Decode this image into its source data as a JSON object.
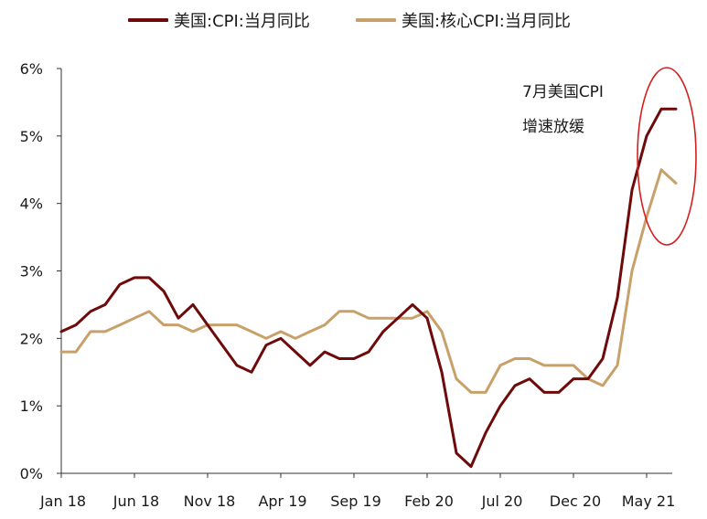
{
  "colors": {
    "cpi": "#6e0a0a",
    "core_cpi": "#c8a06a",
    "highlight": "#d42020",
    "axis": "#333333"
  },
  "legend": [
    {
      "label": "美国:CPI:当月同比",
      "color": "#6e0a0a"
    },
    {
      "label": "美国:核心CPI:当月同比",
      "color": "#c8a06a"
    }
  ],
  "annotation": {
    "line1": "7月美国CPI",
    "line2": "增速放缓"
  },
  "chart_data": {
    "type": "line",
    "title": "",
    "xlabel": "",
    "ylabel": "",
    "ylim": [
      0,
      6
    ],
    "y_ticks": [
      "0%",
      "1%",
      "2%",
      "3%",
      "4%",
      "5%",
      "6%"
    ],
    "x_ticks": [
      "Jan 18",
      "Jun 18",
      "Nov 18",
      "Apr 19",
      "Sep 19",
      "Feb 20",
      "Jul 20",
      "Dec 20",
      "May 21"
    ],
    "x": [
      "2018-01",
      "2018-02",
      "2018-03",
      "2018-04",
      "2018-05",
      "2018-06",
      "2018-07",
      "2018-08",
      "2018-09",
      "2018-10",
      "2018-11",
      "2018-12",
      "2019-01",
      "2019-02",
      "2019-03",
      "2019-04",
      "2019-05",
      "2019-06",
      "2019-07",
      "2019-08",
      "2019-09",
      "2019-10",
      "2019-11",
      "2019-12",
      "2020-01",
      "2020-02",
      "2020-03",
      "2020-04",
      "2020-05",
      "2020-06",
      "2020-07",
      "2020-08",
      "2020-09",
      "2020-10",
      "2020-11",
      "2020-12",
      "2021-01",
      "2021-02",
      "2021-03",
      "2021-04",
      "2021-05",
      "2021-06",
      "2021-07"
    ],
    "series": [
      {
        "name": "美国:CPI:当月同比",
        "values": [
          2.1,
          2.2,
          2.4,
          2.5,
          2.8,
          2.9,
          2.9,
          2.7,
          2.3,
          2.5,
          2.2,
          1.9,
          1.6,
          1.5,
          1.9,
          2.0,
          1.8,
          1.6,
          1.8,
          1.7,
          1.7,
          1.8,
          2.1,
          2.3,
          2.5,
          2.3,
          1.5,
          0.3,
          0.1,
          0.6,
          1.0,
          1.3,
          1.4,
          1.2,
          1.2,
          1.4,
          1.4,
          1.7,
          2.6,
          4.2,
          5.0,
          5.4,
          5.4
        ]
      },
      {
        "name": "美国:核心CPI:当月同比",
        "values": [
          1.8,
          1.8,
          2.1,
          2.1,
          2.2,
          2.3,
          2.4,
          2.2,
          2.2,
          2.1,
          2.2,
          2.2,
          2.2,
          2.1,
          2.0,
          2.1,
          2.0,
          2.1,
          2.2,
          2.4,
          2.4,
          2.3,
          2.3,
          2.3,
          2.3,
          2.4,
          2.1,
          1.4,
          1.2,
          1.2,
          1.6,
          1.7,
          1.7,
          1.6,
          1.6,
          1.6,
          1.4,
          1.3,
          1.6,
          3.0,
          3.8,
          4.5,
          4.3
        ]
      }
    ]
  }
}
